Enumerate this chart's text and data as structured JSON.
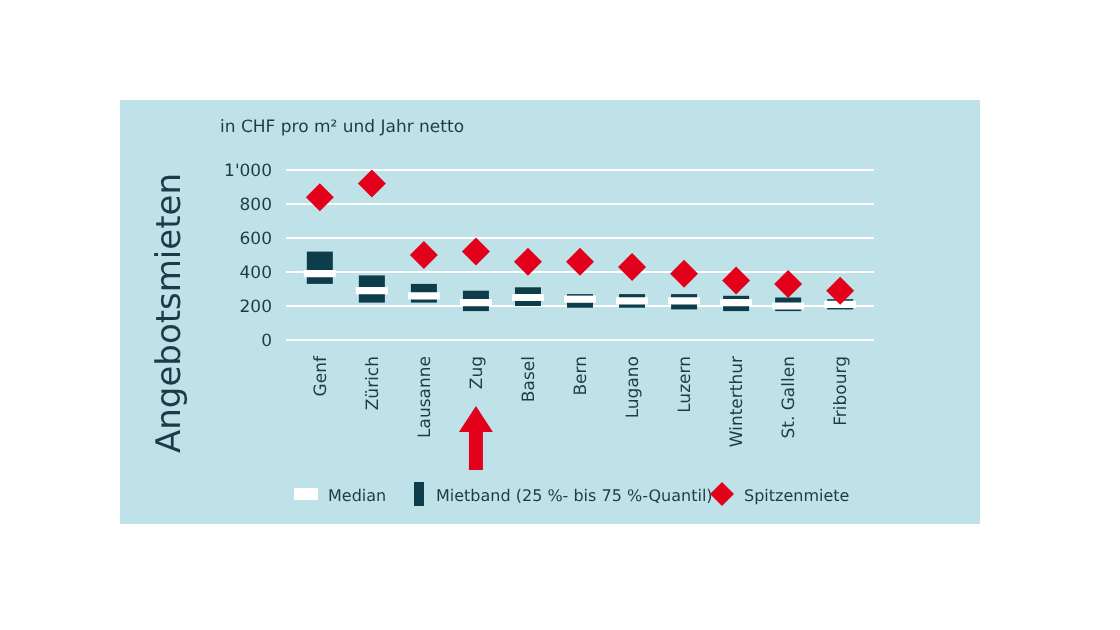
{
  "chart_data": {
    "type": "box",
    "subtitle": "in CHF pro m² und Jahr netto",
    "ylabel": "Angebotsmieten",
    "categories": [
      "Genf",
      "Zürich",
      "Lausanne",
      "Zug",
      "Basel",
      "Bern",
      "Lugano",
      "Luzern",
      "Winterthur",
      "St. Gallen",
      "Fribourg"
    ],
    "series": [
      {
        "name": "Mietband (25 %- bis 75 %-Quantil)",
        "color": "#0d3c4a",
        "boxes": [
          {
            "low": 330,
            "q1": 330,
            "median": 390,
            "q3": 520,
            "high": 520
          },
          {
            "low": 220,
            "q1": 220,
            "median": 290,
            "q3": 380,
            "high": 380
          },
          {
            "low": 220,
            "q1": 220,
            "median": 260,
            "q3": 330,
            "high": 330
          },
          {
            "low": 170,
            "q1": 170,
            "median": 220,
            "q3": 290,
            "high": 290
          },
          {
            "low": 200,
            "q1": 200,
            "median": 250,
            "q3": 310,
            "high": 310
          },
          {
            "low": 190,
            "q1": 190,
            "median": 240,
            "q3": 270,
            "high": 270
          },
          {
            "low": 190,
            "q1": 190,
            "median": 230,
            "q3": 270,
            "high": 270
          },
          {
            "low": 180,
            "q1": 180,
            "median": 230,
            "q3": 270,
            "high": 270
          },
          {
            "low": 170,
            "q1": 170,
            "median": 220,
            "q3": 260,
            "high": 260
          },
          {
            "low": 170,
            "q1": 170,
            "median": 200,
            "q3": 250,
            "high": 250
          },
          {
            "low": 180,
            "q1": 180,
            "median": 210,
            "q3": 240,
            "high": 240
          }
        ]
      },
      {
        "name": "Spitzenmiete",
        "type": "scatter",
        "marker": "diamond",
        "color": "#e2001a",
        "values": [
          840,
          920,
          500,
          520,
          460,
          460,
          430,
          390,
          350,
          330,
          290
        ]
      }
    ],
    "annotations": [
      "Median"
    ],
    "ylim": [
      0,
      1000
    ],
    "yticks": [
      0,
      200,
      400,
      600,
      800,
      {
        "value": 1000,
        "label": "1'000"
      }
    ],
    "grid": "y",
    "legend": "bottom"
  }
}
